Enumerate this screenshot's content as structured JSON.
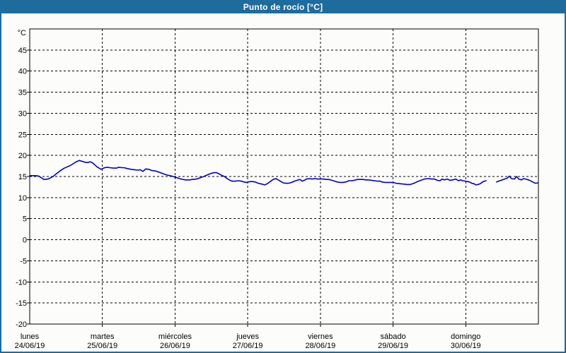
{
  "window": {
    "title": "Punto de rocío [°C]"
  },
  "colors": {
    "titlebar_bg": "#1e6b9d",
    "frame_border": "#1e6b9d",
    "panel_bg": "#fcfdfb",
    "grid": "#000000",
    "axis": "#000000",
    "series_line": "#0000c0",
    "title_text": "#ffffff"
  },
  "chart_data": {
    "type": "line",
    "title": "Punto de rocío [°C]",
    "ylabel": "°C",
    "xlabel": "",
    "ylim": [
      -20,
      50
    ],
    "y_tick_step": 5,
    "y_ticks": [
      45,
      40,
      35,
      30,
      25,
      20,
      15,
      10,
      5,
      0,
      -5,
      -10,
      -15,
      -20
    ],
    "grid": "dashed",
    "legend_position": "none",
    "x_total_hours": 168,
    "x_day_hours": 24,
    "days": [
      {
        "name": "lunes",
        "date": "24/06/19"
      },
      {
        "name": "martes",
        "date": "25/06/19"
      },
      {
        "name": "miércoles",
        "date": "26/06/19"
      },
      {
        "name": "jueves",
        "date": "27/06/19"
      },
      {
        "name": "viernes",
        "date": "28/06/19"
      },
      {
        "name": "sábado",
        "date": "29/06/19"
      },
      {
        "name": "domingo",
        "date": "30/06/19"
      }
    ],
    "series": [
      {
        "name": "Punto de rocío",
        "unit": "°C",
        "color": "#0000c0",
        "points": [
          [
            0,
            15.2
          ],
          [
            1.9,
            15.2
          ],
          [
            3,
            15.1
          ],
          [
            4.7,
            14.3
          ],
          [
            6.1,
            14.4
          ],
          [
            7.7,
            15.0
          ],
          [
            8.9,
            15.7
          ],
          [
            10,
            16.3
          ],
          [
            11.2,
            16.9
          ],
          [
            12.4,
            17.3
          ],
          [
            13.4,
            17.6
          ],
          [
            14.5,
            18.1
          ],
          [
            15.4,
            18.5
          ],
          [
            16.4,
            18.8
          ],
          [
            17.3,
            18.6
          ],
          [
            18.2,
            18.4
          ],
          [
            19.2,
            18.3
          ],
          [
            19.9,
            18.5
          ],
          [
            20.6,
            18.3
          ],
          [
            21.3,
            17.9
          ],
          [
            22.2,
            17.3
          ],
          [
            22.9,
            17.0
          ],
          [
            23.6,
            16.7
          ],
          [
            24.1,
            16.9
          ],
          [
            24.8,
            17.1
          ],
          [
            25.7,
            17.2
          ],
          [
            26.4,
            17.1
          ],
          [
            27.6,
            17.0
          ],
          [
            28.7,
            17.0
          ],
          [
            29.4,
            17.2
          ],
          [
            30.4,
            17.1
          ],
          [
            31.1,
            17.1
          ],
          [
            32.2,
            16.9
          ],
          [
            33.4,
            16.7
          ],
          [
            34.6,
            16.6
          ],
          [
            35.8,
            16.5
          ],
          [
            36.5,
            16.6
          ],
          [
            37.4,
            16.2
          ],
          [
            38.3,
            16.8
          ],
          [
            39.3,
            16.7
          ],
          [
            40.4,
            16.4
          ],
          [
            41.6,
            16.3
          ],
          [
            42.8,
            16.0
          ],
          [
            43.9,
            15.7
          ],
          [
            45.1,
            15.4
          ],
          [
            46.3,
            15.2
          ],
          [
            47.4,
            15.0
          ],
          [
            48.1,
            14.8
          ],
          [
            49.1,
            14.6
          ],
          [
            50,
            14.4
          ],
          [
            51.4,
            14.2
          ],
          [
            52.8,
            14.2
          ],
          [
            53.7,
            14.3
          ],
          [
            55.1,
            14.4
          ],
          [
            56.3,
            14.7
          ],
          [
            57.5,
            15.0
          ],
          [
            58.7,
            15.4
          ],
          [
            59.8,
            15.7
          ],
          [
            60.8,
            15.9
          ],
          [
            61.7,
            15.9
          ],
          [
            62.6,
            15.6
          ],
          [
            63.6,
            15.2
          ],
          [
            64.3,
            15.0
          ],
          [
            65,
            14.6
          ],
          [
            65.9,
            14.2
          ],
          [
            66.8,
            13.9
          ],
          [
            68,
            13.9
          ],
          [
            68.9,
            14.0
          ],
          [
            69.9,
            13.9
          ],
          [
            70.8,
            13.7
          ],
          [
            71.7,
            13.6
          ],
          [
            72.7,
            13.8
          ],
          [
            73.6,
            13.8
          ],
          [
            74.5,
            13.7
          ],
          [
            75.5,
            13.4
          ],
          [
            76.6,
            13.2
          ],
          [
            77.6,
            13.0
          ],
          [
            78.5,
            13.3
          ],
          [
            79.4,
            13.8
          ],
          [
            80.4,
            14.3
          ],
          [
            81.3,
            14.5
          ],
          [
            82.3,
            14.1
          ],
          [
            83,
            13.8
          ],
          [
            83.7,
            13.5
          ],
          [
            84.6,
            13.4
          ],
          [
            85.5,
            13.4
          ],
          [
            86.5,
            13.6
          ],
          [
            87.4,
            13.9
          ],
          [
            88.3,
            14.1
          ],
          [
            89.3,
            14.3
          ],
          [
            90,
            13.9
          ],
          [
            90.7,
            14.1
          ],
          [
            91.4,
            14.4
          ],
          [
            92.3,
            14.5
          ],
          [
            93.2,
            14.4
          ],
          [
            94.2,
            14.5
          ],
          [
            95.1,
            14.4
          ],
          [
            96,
            14.4
          ],
          [
            97,
            14.4
          ],
          [
            97.9,
            14.3
          ],
          [
            98.8,
            14.3
          ],
          [
            99.8,
            14.1
          ],
          [
            100.7,
            13.9
          ],
          [
            101.6,
            13.7
          ],
          [
            102.6,
            13.6
          ],
          [
            103.5,
            13.6
          ],
          [
            104.4,
            13.7
          ],
          [
            105.4,
            14.0
          ],
          [
            106.3,
            14.0
          ],
          [
            107.2,
            14.1
          ],
          [
            108.2,
            14.3
          ],
          [
            109.1,
            14.3
          ],
          [
            110.1,
            14.3
          ],
          [
            111,
            14.2
          ],
          [
            111.9,
            14.2
          ],
          [
            112.9,
            14.1
          ],
          [
            113.8,
            14.0
          ],
          [
            114.7,
            13.9
          ],
          [
            115.7,
            13.9
          ],
          [
            116.4,
            13.7
          ],
          [
            117.3,
            13.6
          ],
          [
            118.2,
            13.6
          ],
          [
            119.4,
            13.6
          ],
          [
            120.1,
            13.6
          ],
          [
            121,
            13.4
          ],
          [
            122.2,
            13.3
          ],
          [
            123.4,
            13.2
          ],
          [
            124.6,
            13.1
          ],
          [
            125.7,
            13.1
          ],
          [
            126.9,
            13.4
          ],
          [
            128.1,
            13.8
          ],
          [
            129.2,
            14.1
          ],
          [
            130.4,
            14.4
          ],
          [
            131.6,
            14.5
          ],
          [
            132.7,
            14.4
          ],
          [
            133.7,
            14.4
          ],
          [
            134.6,
            14.1
          ],
          [
            135.5,
            14.0
          ],
          [
            136.2,
            14.4
          ],
          [
            136.9,
            14.2
          ],
          [
            137.9,
            14.4
          ],
          [
            138.8,
            14.1
          ],
          [
            139.7,
            14.2
          ],
          [
            140.7,
            14.4
          ],
          [
            141.6,
            14.0
          ],
          [
            142.3,
            14.2
          ],
          [
            143,
            14.0
          ],
          [
            143.9,
            13.9
          ],
          [
            144.6,
            13.8
          ],
          [
            145.3,
            13.7
          ],
          [
            146,
            13.4
          ],
          [
            146.7,
            13.3
          ],
          [
            147.4,
            13.0
          ],
          [
            148.1,
            13.1
          ],
          [
            148.8,
            13.3
          ],
          [
            149.8,
            13.8
          ],
          [
            150.7,
            14.0
          ],
          [
            151.5,
            null
          ],
          [
            154.2,
            13.7
          ],
          [
            155.2,
            14.0
          ],
          [
            156.1,
            14.2
          ],
          [
            156.8,
            14.4
          ],
          [
            157.7,
            14.6
          ],
          [
            158.4,
            15.1
          ],
          [
            159.1,
            14.5
          ],
          [
            160.1,
            14.4
          ],
          [
            160.8,
            15.0
          ],
          [
            161.5,
            14.4
          ],
          [
            162.4,
            14.2
          ],
          [
            163.1,
            14.5
          ],
          [
            163.8,
            14.4
          ],
          [
            164.7,
            14.2
          ],
          [
            165.4,
            14.0
          ],
          [
            166.1,
            13.7
          ],
          [
            167.1,
            13.4
          ],
          [
            167.8,
            13.5
          ]
        ]
      }
    ]
  }
}
